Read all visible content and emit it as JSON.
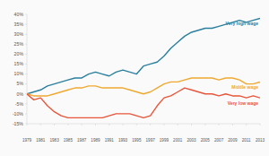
{
  "chart_data": {
    "type": "line",
    "x": [
      1979,
      1980,
      1981,
      1982,
      1983,
      1984,
      1985,
      1986,
      1987,
      1988,
      1989,
      1990,
      1991,
      1992,
      1993,
      1994,
      1995,
      1996,
      1997,
      1998,
      1999,
      2000,
      2001,
      2002,
      2003,
      2004,
      2005,
      2006,
      2007,
      2008,
      2009,
      2010,
      2011,
      2012,
      2013
    ],
    "series": [
      {
        "name": "Very high wage",
        "color": "#2a7f9e",
        "values": [
          0,
          1,
          2,
          4,
          5,
          6,
          7,
          8,
          8,
          10,
          11,
          10,
          9,
          11,
          12,
          11,
          10,
          14,
          15,
          16,
          19,
          23,
          26,
          29,
          31,
          32,
          33,
          33,
          34,
          35,
          36,
          37,
          36,
          37,
          38
        ]
      },
      {
        "name": "Middle wage",
        "color": "#f0a830",
        "values": [
          0,
          -1,
          -1,
          -1,
          0,
          1,
          2,
          3,
          3,
          4,
          4,
          3,
          3,
          3,
          3,
          2,
          1,
          0,
          1,
          3,
          5,
          6,
          6,
          7,
          8,
          8,
          8,
          8,
          7,
          8,
          8,
          7,
          5,
          5,
          6
        ]
      },
      {
        "name": "Very low wage",
        "color": "#e8553a",
        "values": [
          0,
          -3,
          -2,
          -6,
          -9,
          -11,
          -12,
          -12,
          -12,
          -12,
          -12,
          -12,
          -11,
          -10,
          -10,
          -10,
          -11,
          -12,
          -11,
          -6,
          -2,
          -1,
          1,
          3,
          2,
          1,
          0,
          0,
          -1,
          0,
          -1,
          -1,
          -2,
          -1,
          -2
        ]
      }
    ],
    "xlim": [
      1979,
      2013
    ],
    "xticks": [
      1979,
      1981,
      1983,
      1985,
      1987,
      1989,
      1991,
      1993,
      1995,
      1997,
      1999,
      2001,
      2003,
      2005,
      2007,
      2009,
      2011,
      2013
    ],
    "ylim": [
      -15,
      40
    ],
    "yticks": [
      {
        "value": -15,
        "label": "-15%"
      },
      {
        "value": -10,
        "label": "-10%"
      },
      {
        "value": -5,
        "label": "-5%"
      },
      {
        "value": 0,
        "label": "0%"
      },
      {
        "value": 5,
        "label": "5%"
      },
      {
        "value": 10,
        "label": "10%"
      },
      {
        "value": 15,
        "label": "15%"
      },
      {
        "value": 20,
        "label": "20%"
      },
      {
        "value": 25,
        "label": "25%"
      },
      {
        "value": 30,
        "label": "30%"
      },
      {
        "value": 35,
        "label": "35%"
      },
      {
        "value": 40,
        "label": "40%"
      }
    ],
    "grid": false
  }
}
